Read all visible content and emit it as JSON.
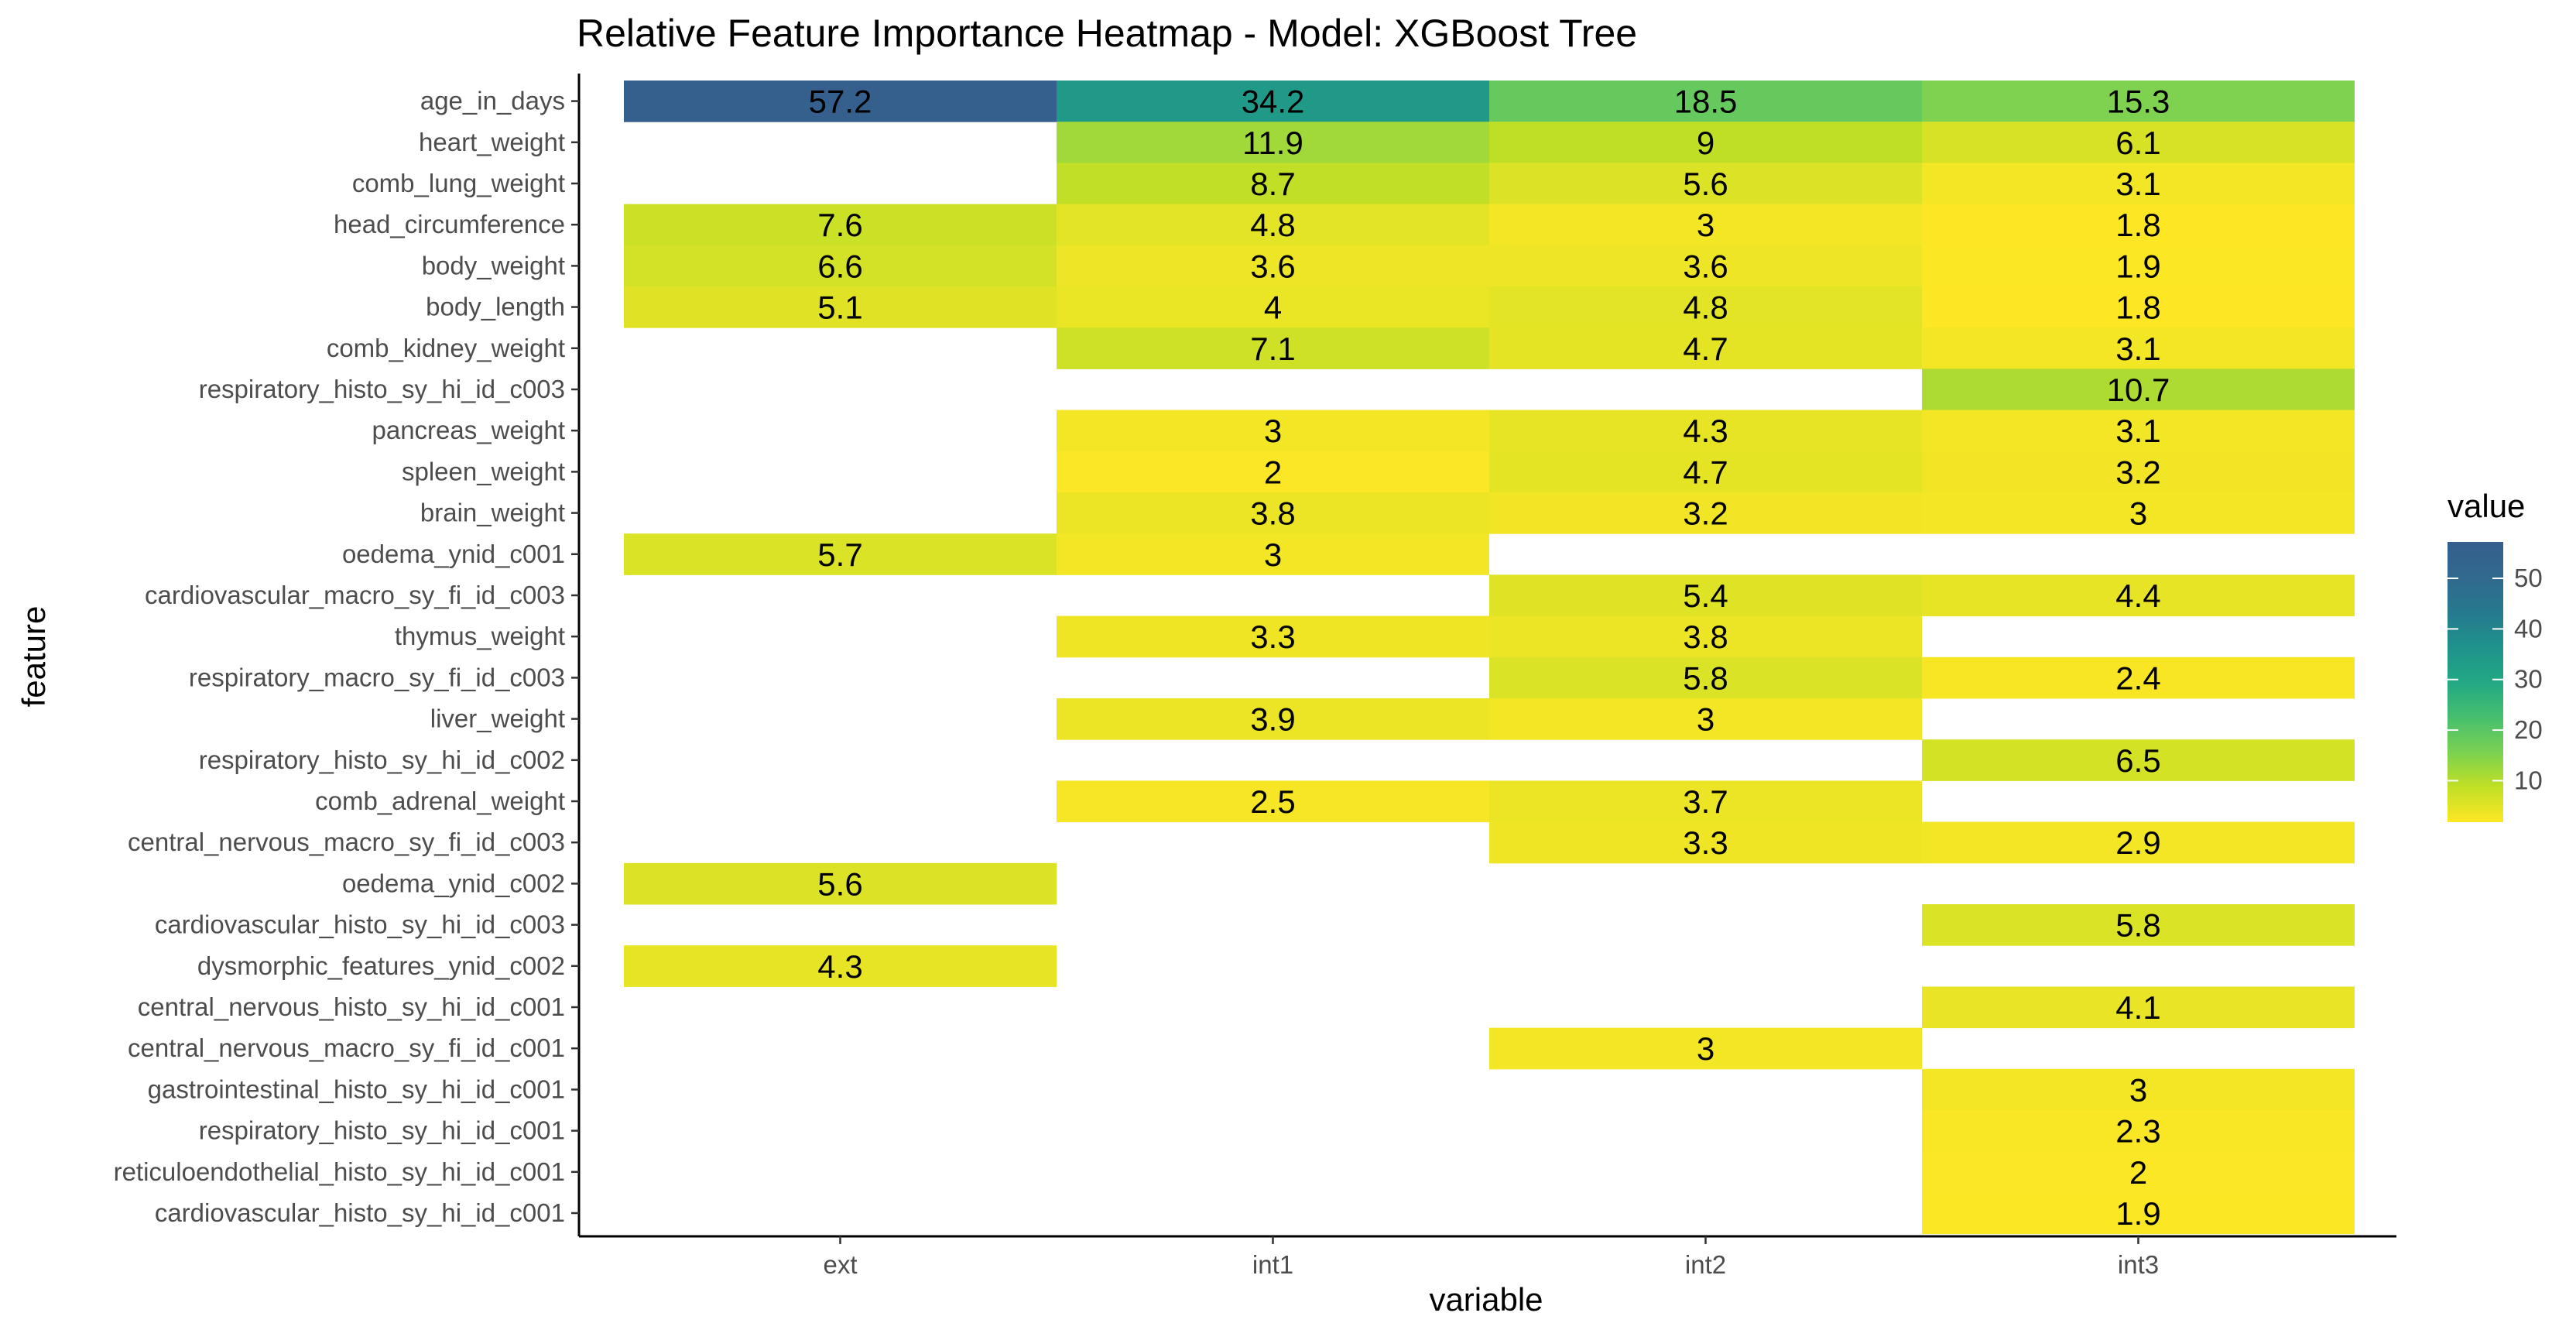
{
  "chart_data": {
    "type": "heatmap",
    "title": "Relative Feature Importance Heatmap - Model: XGBoost Tree",
    "xlabel": "variable",
    "ylabel": "feature",
    "x_categories": [
      "ext",
      "int1",
      "int2",
      "int3"
    ],
    "y_categories": [
      "age_in_days",
      "heart_weight",
      "comb_lung_weight",
      "head_circumference",
      "body_weight",
      "body_length",
      "comb_kidney_weight",
      "respiratory_histo_sy_hi_id_c003",
      "pancreas_weight",
      "spleen_weight",
      "brain_weight",
      "oedema_ynid_c001",
      "cardiovascular_macro_sy_fi_id_c003",
      "thymus_weight",
      "respiratory_macro_sy_fi_id_c003",
      "liver_weight",
      "respiratory_histo_sy_hi_id_c002",
      "comb_adrenal_weight",
      "central_nervous_macro_sy_fi_id_c003",
      "oedema_ynid_c002",
      "cardiovascular_histo_sy_hi_id_c003",
      "dysmorphic_features_ynid_c002",
      "central_nervous_histo_sy_hi_id_c001",
      "central_nervous_macro_sy_fi_id_c001",
      "gastrointestinal_histo_sy_hi_id_c001",
      "respiratory_histo_sy_hi_id_c001",
      "reticuloendothelial_histo_sy_hi_id_c001",
      "cardiovascular_histo_sy_hi_id_c001"
    ],
    "values": [
      [
        57.2,
        34.2,
        18.5,
        15.3
      ],
      [
        null,
        11.9,
        9,
        6.1
      ],
      [
        null,
        8.7,
        5.6,
        3.1
      ],
      [
        7.6,
        4.8,
        3,
        1.8
      ],
      [
        6.6,
        3.6,
        3.6,
        1.9
      ],
      [
        5.1,
        4,
        4.8,
        1.8
      ],
      [
        null,
        7.1,
        4.7,
        3.1
      ],
      [
        null,
        null,
        null,
        10.7
      ],
      [
        null,
        3,
        4.3,
        3.1
      ],
      [
        null,
        2,
        4.7,
        3.2
      ],
      [
        null,
        3.8,
        3.2,
        3
      ],
      [
        5.7,
        3,
        null,
        null
      ],
      [
        null,
        null,
        5.4,
        4.4
      ],
      [
        null,
        3.3,
        3.8,
        null
      ],
      [
        null,
        null,
        5.8,
        2.4
      ],
      [
        null,
        3.9,
        3,
        null
      ],
      [
        null,
        null,
        null,
        6.5
      ],
      [
        null,
        2.5,
        3.7,
        null
      ],
      [
        null,
        null,
        3.3,
        2.9
      ],
      [
        5.6,
        null,
        null,
        null
      ],
      [
        null,
        null,
        null,
        5.8
      ],
      [
        4.3,
        null,
        null,
        null
      ],
      [
        null,
        null,
        null,
        4.1
      ],
      [
        null,
        null,
        3,
        null
      ],
      [
        null,
        null,
        null,
        3
      ],
      [
        null,
        null,
        null,
        2.3
      ],
      [
        null,
        null,
        null,
        2
      ],
      [
        null,
        null,
        null,
        1.9
      ]
    ],
    "legend": {
      "title": "value",
      "ticks": [
        10,
        20,
        30,
        40,
        50
      ],
      "range": [
        1.8,
        57.2
      ],
      "placement": "right",
      "colormap": "viridis"
    },
    "grid": false
  }
}
